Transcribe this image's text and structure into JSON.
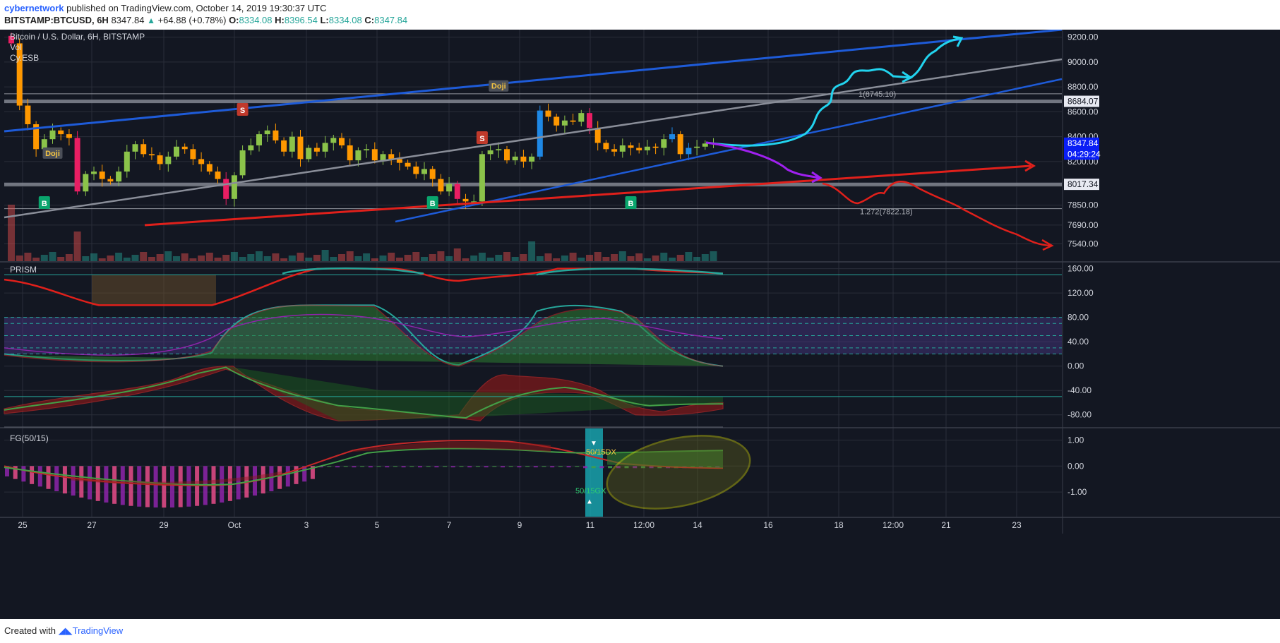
{
  "header": {
    "author": "cybernetwork",
    "published": "published on TradingView.com, October 14, 2019 19:30:37 UTC",
    "symbol": "BITSTAMP:BTCUSD, 6H",
    "price": "8347.84",
    "change": "+64.88 (+0.78%)",
    "open_label": "O:",
    "open": "8334.08",
    "high_label": "H:",
    "high": "8396.54",
    "low_label": "L:",
    "low": "8334.08",
    "close_label": "C:",
    "close": "8347.84"
  },
  "footer": {
    "created_with": "Created with",
    "brand": "TradingView"
  },
  "colors": {
    "background": "#131722",
    "grid": "#2a2e39",
    "axis_text": "#d1d4dc",
    "up": "#8bc34a",
    "down": "#ff9800",
    "blue": "#1e5bd8",
    "red": "#e0201b",
    "cyan": "#22d3ee",
    "purple": "#a020f0",
    "yellow": "#f5f500"
  },
  "chart_data": [
    {
      "type": "candlestick",
      "title": "Bitcoin / U.S. Dollar, 6H, BITSTAMP",
      "indicators": [
        "Vol",
        "Cy.ESB"
      ],
      "x_ticks": [
        "25",
        "27",
        "29",
        "Oct",
        "3",
        "5",
        "7",
        "9",
        "11",
        "12:00",
        "14",
        "16",
        "18",
        "12:00",
        "21",
        "23"
      ],
      "y_ticks": [
        "9200.00",
        "9000.00",
        "8800.00",
        "8600.00",
        "8400.00",
        "8200.00",
        "8000.00",
        "7850.00",
        "7690.00",
        "7540.00"
      ],
      "ylim": [
        7400,
        9260
      ],
      "price_labels": [
        {
          "text": "8684.07",
          "value": 8684.07
        },
        {
          "text": "8347.84",
          "value": 8347.84
        },
        {
          "text": "04:29:24",
          "value": 8260
        },
        {
          "text": "8017.34",
          "value": 8017.34
        }
      ],
      "horizontal_levels": [
        8745,
        8684,
        8017,
        7822
      ],
      "annotations": [
        {
          "text": "Doji",
          "bar": 5,
          "value": 8200
        },
        {
          "text": "Doji",
          "bar": 59,
          "value": 8740
        },
        {
          "text": "1(8745.10)",
          "value": 8745.1
        },
        {
          "text": "1.272(7822.18)",
          "value": 7822.18
        }
      ],
      "signals": [
        {
          "text": "B",
          "bar": 4,
          "kind": "buy"
        },
        {
          "text": "S",
          "bar": 28,
          "kind": "sell"
        },
        {
          "text": "B",
          "bar": 51,
          "kind": "buy"
        },
        {
          "text": "S",
          "bar": 57,
          "kind": "sell"
        },
        {
          "text": "B",
          "bar": 75,
          "kind": "buy"
        }
      ],
      "candles_close": [
        9150,
        8650,
        8500,
        8300,
        8380,
        8450,
        8420,
        8390,
        7960,
        8100,
        8120,
        8060,
        8040,
        8120,
        8280,
        8340,
        8260,
        8250,
        8180,
        8240,
        8320,
        8300,
        8220,
        8180,
        8120,
        8060,
        7900,
        8090,
        8290,
        8330,
        8420,
        8450,
        8370,
        8280,
        8400,
        8220,
        8310,
        8280,
        8350,
        8390,
        8330,
        8210,
        8290,
        8300,
        8210,
        8260,
        8220,
        8190,
        8160,
        8100,
        8140,
        8060,
        7960,
        8020,
        7900,
        7880,
        7880,
        8260,
        8290,
        8300,
        8210,
        8240,
        8200,
        8240,
        8610,
        8560,
        8490,
        8530,
        8520,
        8590,
        8470,
        8350,
        8300,
        8280,
        8330,
        8310,
        8290,
        8320,
        8310,
        8380,
        8420,
        8260,
        8310,
        8320,
        8345,
        8348
      ],
      "volume_last": "vol"
    },
    {
      "type": "line",
      "title": "PRISM",
      "y_ticks": [
        "160.00",
        "120.00",
        "80.00",
        "40.00",
        "0.00",
        "-40.00",
        "-80.00"
      ],
      "ylim": [
        -100,
        170
      ],
      "bands": [
        80,
        70,
        50,
        30,
        20
      ]
    },
    {
      "type": "histogram",
      "title": "FG(50/15)",
      "y_ticks": [
        "1.00",
        "0.00",
        "-1.00"
      ],
      "ylim": [
        -1.95,
        1.45
      ],
      "annotations": [
        "50/15DX",
        "50/15GX"
      ]
    }
  ]
}
